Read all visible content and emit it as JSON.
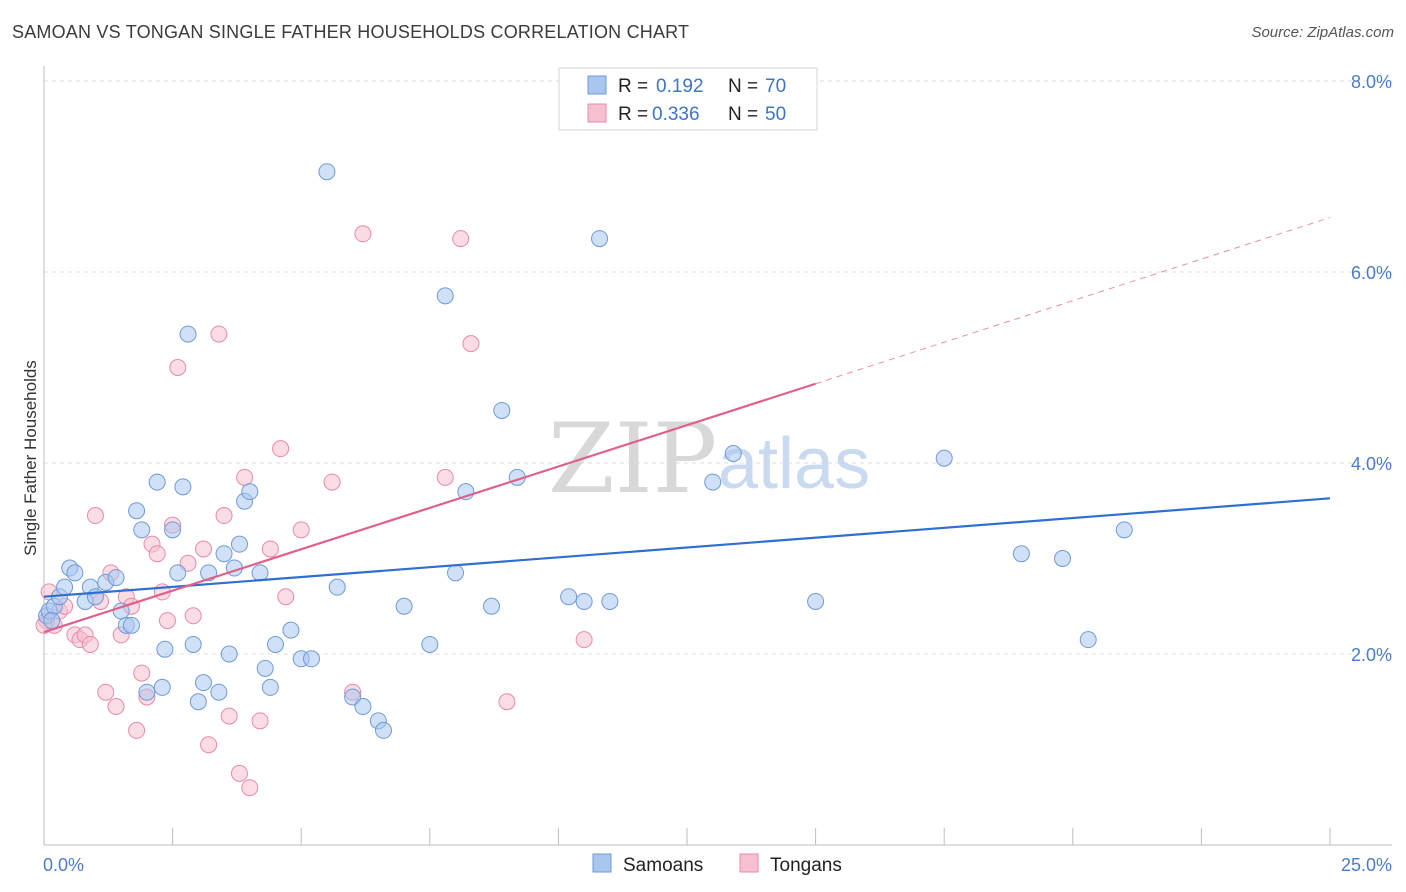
{
  "title": "SAMOAN VS TONGAN SINGLE FATHER HOUSEHOLDS CORRELATION CHART",
  "source": "Source: ZipAtlas.com",
  "watermark": {
    "zip": "ZIP",
    "atlas": "atlas"
  },
  "legend": {
    "r_label": "R =",
    "n_label": "N =",
    "rows": [
      {
        "series": "Samoans",
        "r": "0.192",
        "n": "70"
      },
      {
        "series": "Tongans",
        "r": "0.336",
        "n": "50"
      }
    ]
  },
  "bottom_legend": [
    "Samoans",
    "Tongans"
  ],
  "colors": {
    "samoan_fill": "#a9c6ef",
    "samoan_stroke": "#6f9ad8",
    "samoan_line": "#2f6fcf",
    "tongan_fill": "#f6c0d0",
    "tongan_stroke": "#e98aa8",
    "tongan_line": "#e0608a",
    "tick_color": "#4a7cc9"
  },
  "chart_data": {
    "type": "scatter",
    "title": "SAMOAN VS TONGAN SINGLE FATHER HOUSEHOLDS CORRELATION CHART",
    "xlabel": "",
    "ylabel": "Single Father Households",
    "xlim": [
      0,
      25
    ],
    "ylim": [
      0,
      8
    ],
    "x_tick_labels": [
      "0.0%",
      "25.0%"
    ],
    "y_ticks": [
      2,
      4,
      6,
      8
    ],
    "y_tick_labels": [
      "2.0%",
      "4.0%",
      "6.0%",
      "8.0%"
    ],
    "grid": true,
    "legend_position": "top-center",
    "series": [
      {
        "name": "Samoans",
        "points": [
          [
            0.05,
            2.4
          ],
          [
            0.1,
            2.45
          ],
          [
            0.2,
            2.5
          ],
          [
            0.3,
            2.6
          ],
          [
            0.4,
            2.7
          ],
          [
            0.5,
            2.9
          ],
          [
            0.6,
            2.85
          ],
          [
            0.8,
            2.55
          ],
          [
            0.9,
            2.7
          ],
          [
            1.0,
            2.6
          ],
          [
            1.2,
            2.75
          ],
          [
            1.4,
            2.8
          ],
          [
            1.5,
            2.45
          ],
          [
            1.6,
            2.3
          ],
          [
            1.7,
            2.3
          ],
          [
            1.8,
            3.5
          ],
          [
            1.9,
            3.3
          ],
          [
            2.0,
            1.6
          ],
          [
            2.2,
            3.8
          ],
          [
            2.3,
            1.65
          ],
          [
            2.35,
            2.05
          ],
          [
            2.5,
            3.3
          ],
          [
            2.6,
            2.85
          ],
          [
            2.7,
            3.75
          ],
          [
            2.8,
            5.35
          ],
          [
            2.9,
            2.1
          ],
          [
            3.0,
            1.5
          ],
          [
            3.1,
            1.7
          ],
          [
            3.2,
            2.85
          ],
          [
            3.4,
            1.6
          ],
          [
            3.5,
            3.05
          ],
          [
            3.6,
            2.0
          ],
          [
            3.7,
            2.9
          ],
          [
            3.8,
            3.15
          ],
          [
            3.9,
            3.6
          ],
          [
            4.0,
            3.7
          ],
          [
            4.2,
            2.85
          ],
          [
            4.3,
            1.85
          ],
          [
            4.4,
            1.65
          ],
          [
            4.5,
            2.1
          ],
          [
            4.8,
            2.25
          ],
          [
            5.0,
            1.95
          ],
          [
            5.2,
            1.95
          ],
          [
            5.5,
            7.05
          ],
          [
            5.7,
            2.7
          ],
          [
            6.0,
            1.55
          ],
          [
            6.2,
            1.45
          ],
          [
            6.5,
            1.3
          ],
          [
            6.6,
            1.2
          ],
          [
            7.0,
            2.5
          ],
          [
            7.5,
            2.1
          ],
          [
            7.8,
            5.75
          ],
          [
            8.0,
            2.85
          ],
          [
            8.2,
            3.7
          ],
          [
            8.7,
            2.5
          ],
          [
            8.9,
            4.55
          ],
          [
            9.2,
            3.85
          ],
          [
            10.2,
            2.6
          ],
          [
            10.5,
            2.55
          ],
          [
            10.8,
            6.35
          ],
          [
            11.0,
            2.55
          ],
          [
            13.0,
            3.8
          ],
          [
            13.4,
            4.1
          ],
          [
            15.0,
            2.55
          ],
          [
            17.5,
            4.05
          ],
          [
            19.0,
            3.05
          ],
          [
            19.8,
            3.0
          ],
          [
            20.3,
            2.15
          ],
          [
            21.0,
            3.3
          ],
          [
            0.15,
            2.35
          ]
        ]
      },
      {
        "name": "Tongans",
        "points": [
          [
            0.05,
            2.35
          ],
          [
            0.1,
            2.65
          ],
          [
            0.2,
            2.3
          ],
          [
            0.3,
            2.45
          ],
          [
            0.4,
            2.5
          ],
          [
            0.6,
            2.2
          ],
          [
            0.7,
            2.15
          ],
          [
            0.8,
            2.2
          ],
          [
            0.9,
            2.1
          ],
          [
            1.0,
            3.45
          ],
          [
            1.1,
            2.55
          ],
          [
            1.2,
            1.6
          ],
          [
            1.3,
            2.85
          ],
          [
            1.4,
            1.45
          ],
          [
            1.5,
            2.2
          ],
          [
            1.6,
            2.6
          ],
          [
            1.7,
            2.5
          ],
          [
            1.8,
            1.2
          ],
          [
            1.9,
            1.8
          ],
          [
            2.0,
            1.55
          ],
          [
            2.1,
            3.15
          ],
          [
            2.2,
            3.05
          ],
          [
            2.3,
            2.65
          ],
          [
            2.4,
            2.35
          ],
          [
            2.5,
            3.35
          ],
          [
            2.6,
            5.0
          ],
          [
            2.8,
            2.95
          ],
          [
            2.9,
            2.4
          ],
          [
            3.1,
            3.1
          ],
          [
            3.2,
            1.05
          ],
          [
            3.4,
            5.35
          ],
          [
            3.5,
            3.45
          ],
          [
            3.6,
            1.35
          ],
          [
            3.8,
            0.75
          ],
          [
            3.9,
            3.85
          ],
          [
            4.0,
            0.6
          ],
          [
            4.2,
            1.3
          ],
          [
            4.4,
            3.1
          ],
          [
            4.6,
            4.15
          ],
          [
            4.7,
            2.6
          ],
          [
            5.0,
            3.3
          ],
          [
            5.6,
            3.8
          ],
          [
            6.0,
            1.6
          ],
          [
            6.2,
            6.4
          ],
          [
            7.8,
            3.85
          ],
          [
            8.1,
            6.35
          ],
          [
            8.3,
            5.25
          ],
          [
            9.0,
            1.5
          ],
          [
            10.5,
            2.15
          ],
          [
            0.0,
            2.3
          ]
        ]
      }
    ],
    "trend_lines": [
      {
        "series": "Samoans",
        "x0": 0,
        "y0": 2.6,
        "x1": 25,
        "y1": 3.63
      },
      {
        "series": "Tongans",
        "x0": 0,
        "y0": 2.23,
        "x1": 15,
        "y1": 4.83,
        "dashed_to_x": 25,
        "dashed_to_y": 6.57
      }
    ]
  }
}
